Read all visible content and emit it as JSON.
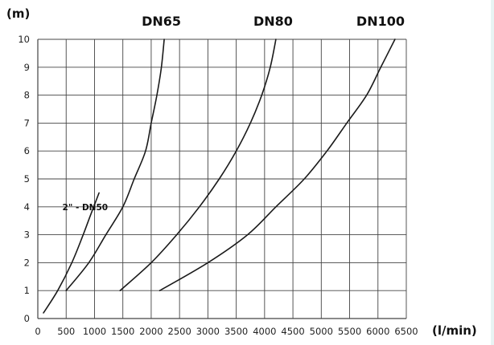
{
  "colors": {
    "grid": "#444444",
    "curve": "#1a1a1a",
    "text": "#111111",
    "background": "#ffffff"
  },
  "chart_data": {
    "type": "line",
    "x_unit_label": "(l/min)",
    "y_unit_label": "(m)",
    "xlim": [
      0,
      6500
    ],
    "ylim": [
      0,
      10
    ],
    "x_ticks": [
      0,
      500,
      1000,
      1500,
      2000,
      2500,
      3000,
      3500,
      4000,
      4500,
      5000,
      5500,
      6000,
      6500
    ],
    "y_ticks": [
      0,
      1,
      2,
      3,
      4,
      5,
      6,
      7,
      8,
      9,
      10
    ],
    "grid": true,
    "legend": "none",
    "series": [
      {
        "name": "2\" - DN50",
        "points": [
          [
            100,
            0.2
          ],
          [
            350,
            1.0
          ],
          [
            600,
            2.0
          ],
          [
            800,
            3.0
          ],
          [
            930,
            3.7
          ],
          [
            1080,
            4.5
          ]
        ]
      },
      {
        "name": "DN65",
        "points": [
          [
            500,
            1.0
          ],
          [
            900,
            2.0
          ],
          [
            1200,
            3.0
          ],
          [
            1500,
            4.0
          ],
          [
            1700,
            5.0
          ],
          [
            1900,
            6.0
          ],
          [
            2000,
            7.0
          ],
          [
            2100,
            8.0
          ],
          [
            2180,
            9.0
          ],
          [
            2230,
            10.0
          ]
        ]
      },
      {
        "name": "DN80",
        "points": [
          [
            1450,
            1.0
          ],
          [
            2000,
            2.0
          ],
          [
            2450,
            3.0
          ],
          [
            2850,
            4.0
          ],
          [
            3200,
            5.0
          ],
          [
            3500,
            6.0
          ],
          [
            3750,
            7.0
          ],
          [
            3950,
            8.0
          ],
          [
            4100,
            9.0
          ],
          [
            4200,
            10.0
          ]
        ]
      },
      {
        "name": "DN100",
        "points": [
          [
            2150,
            1.0
          ],
          [
            3000,
            2.0
          ],
          [
            3700,
            3.0
          ],
          [
            4200,
            4.0
          ],
          [
            4700,
            5.0
          ],
          [
            5100,
            6.0
          ],
          [
            5450,
            7.0
          ],
          [
            5800,
            8.0
          ],
          [
            6050,
            9.0
          ],
          [
            6300,
            10.0
          ]
        ]
      }
    ]
  }
}
